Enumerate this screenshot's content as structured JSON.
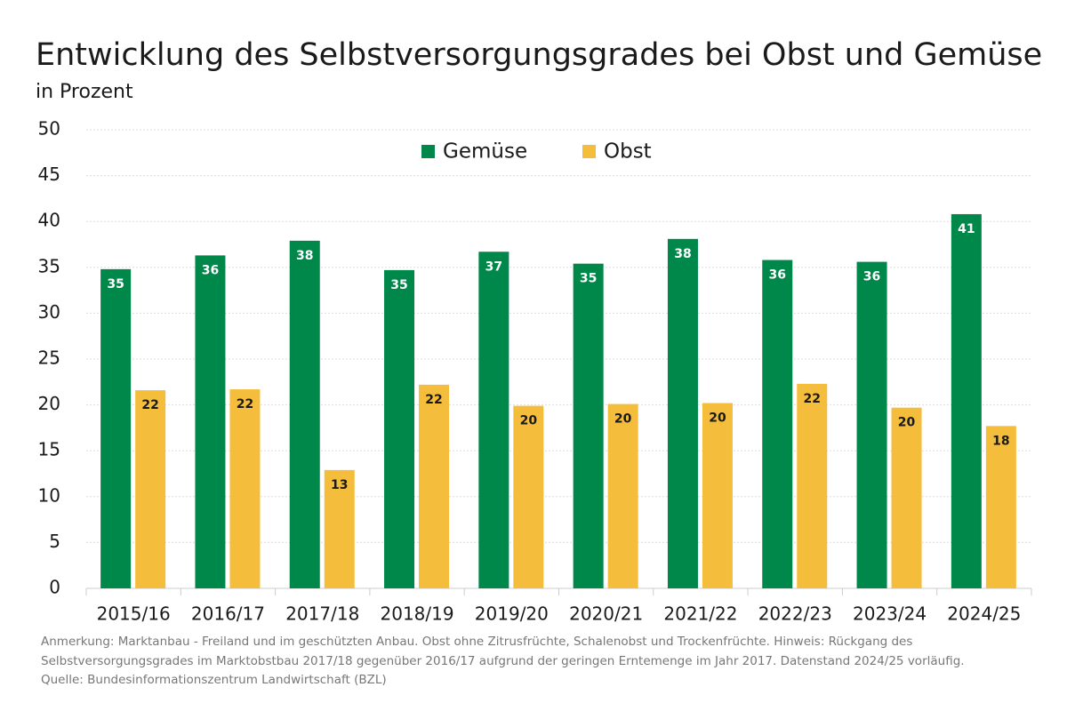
{
  "chart_data": {
    "type": "bar",
    "title": "Entwicklung des Selbstversorgungsgrades bei Obst und Gemüse",
    "subtitle": "in Prozent",
    "categories": [
      "2015/16",
      "2016/17",
      "2017/18",
      "2018/19",
      "2019/20",
      "2020/21",
      "2021/22",
      "2022/23",
      "2023/24",
      "2024/25"
    ],
    "series": [
      {
        "name": "Gemüse",
        "color": "#00874a",
        "label_color": "#ffffff",
        "values": [
          34.8,
          36.3,
          37.9,
          34.7,
          36.7,
          35.4,
          38.1,
          35.8,
          35.6,
          40.8
        ],
        "value_labels": [
          "35",
          "36",
          "38",
          "35",
          "37",
          "35",
          "38",
          "36",
          "36",
          "41"
        ]
      },
      {
        "name": "Obst",
        "color": "#f5bd3c",
        "label_color": "#1a1a1a",
        "values": [
          21.6,
          21.7,
          12.9,
          22.2,
          19.9,
          20.1,
          20.2,
          22.3,
          19.7,
          17.7
        ],
        "value_labels": [
          "22",
          "22",
          "13",
          "22",
          "20",
          "20",
          "20",
          "22",
          "20",
          "18"
        ]
      }
    ],
    "ylim": [
      0,
      50
    ],
    "yticks": [
      0,
      5,
      10,
      15,
      20,
      25,
      30,
      35,
      40,
      45,
      50
    ],
    "grid": true,
    "legend": "top",
    "notes": [
      "Anmerkung: Marktanbau - Freiland und im geschützten Anbau. Obst ohne Zitrusfrüchte, Schalenobst und Trockenfrüchte. Hinweis: Rückgang des",
      "Selbstversorgungsgrades im Marktobstbau 2017/18 gegenüber 2016/17 aufgrund der geringen Erntemenge im Jahr 2017. Datenstand 2024/25 vorläufig."
    ],
    "source": "Quelle: Bundesinformationszentrum Landwirtschaft (BZL)"
  }
}
